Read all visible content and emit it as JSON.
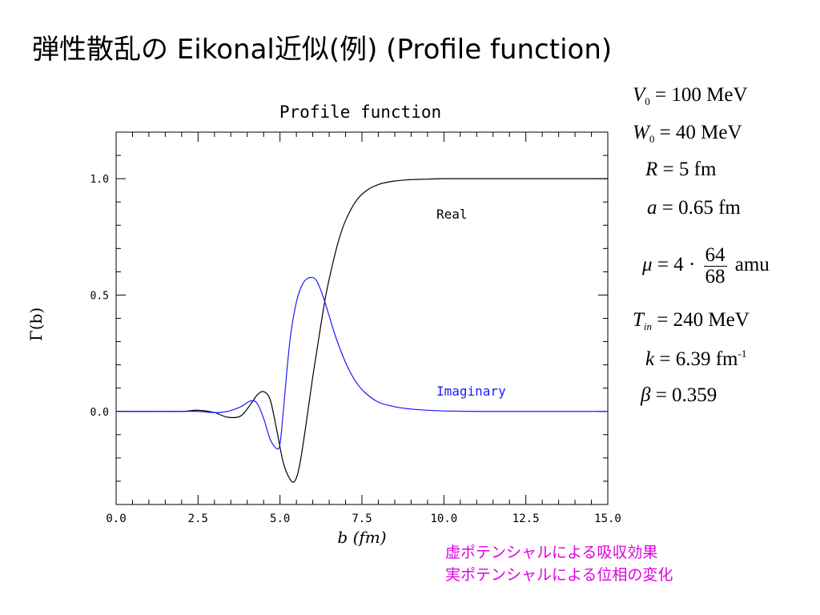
{
  "slide": {
    "title": "弾性散乱の Eikonal近似(例) (Profile function)"
  },
  "parameters": {
    "V0": {
      "symbol": "V",
      "sub": "0",
      "rhs": "= 100 MeV"
    },
    "W0": {
      "symbol": "W",
      "sub": "0",
      "rhs": "= 40 MeV"
    },
    "R": {
      "symbol": "R",
      "rhs": "= 5 fm"
    },
    "a": {
      "symbol": "a",
      "rhs": "= 0.65 fm"
    },
    "mu": {
      "symbol": "μ",
      "lhs_rest": "= 4 ·",
      "num": "64",
      "den": "68",
      "unit": "amu"
    },
    "Tin": {
      "symbol": "T",
      "sub": "in",
      "rhs": "= 240 MeV"
    },
    "k": {
      "symbol": "k",
      "rhs": "= 6.39 fm",
      "sup": "-1"
    },
    "beta": {
      "symbol": "β",
      "rhs": "= 0.359"
    }
  },
  "notes": {
    "line1": "虚ポテンシャルによる吸収効果",
    "line2": "実ポテンシャルによる位相の変化"
  },
  "chart_data": {
    "type": "line",
    "title": "Profile function",
    "xlabel": "b (fm)",
    "ylabel": "Γ(b)",
    "xlim": [
      0,
      15
    ],
    "ylim": [
      -0.4,
      1.2
    ],
    "x_ticks": [
      "0.0",
      "2.5",
      "5.0",
      "7.5",
      "10.0",
      "12.5",
      "15.0"
    ],
    "y_ticks": [
      "0.0",
      "0.5",
      "1.0"
    ],
    "grid": false,
    "series": [
      {
        "name": "Real",
        "color": "#000000",
        "x": [
          0,
          1,
          2,
          2.5,
          3,
          3.4,
          3.8,
          4.1,
          4.3,
          4.5,
          4.7,
          4.9,
          5.1,
          5.3,
          5.45,
          5.6,
          5.8,
          6.0,
          6.2,
          6.4,
          6.6,
          6.8,
          7.0,
          7.3,
          7.6,
          8.0,
          8.5,
          9.0,
          9.5,
          10,
          11,
          12,
          13,
          14,
          15
        ],
        "y": [
          0,
          0,
          0,
          0.005,
          -0.005,
          -0.025,
          -0.02,
          0.03,
          0.07,
          0.085,
          0.05,
          -0.08,
          -0.22,
          -0.29,
          -0.3,
          -0.23,
          -0.05,
          0.15,
          0.33,
          0.5,
          0.63,
          0.74,
          0.82,
          0.9,
          0.945,
          0.975,
          0.99,
          0.996,
          0.998,
          1.0,
          1.0,
          1.0,
          1.0,
          1.0,
          1.0
        ]
      },
      {
        "name": "Imaginary",
        "color": "#1a1aff",
        "x": [
          0,
          1,
          2,
          2.5,
          3,
          3.4,
          3.8,
          4.1,
          4.3,
          4.5,
          4.7,
          4.9,
          5.0,
          5.1,
          5.3,
          5.5,
          5.7,
          5.9,
          6.1,
          6.3,
          6.5,
          6.7,
          7.0,
          7.3,
          7.6,
          8.0,
          8.5,
          9.0,
          9.5,
          10,
          11,
          12,
          13,
          14,
          15
        ],
        "y": [
          0,
          0,
          0,
          0,
          -0.005,
          0,
          0.02,
          0.045,
          0.035,
          -0.03,
          -0.12,
          -0.16,
          -0.14,
          0.0,
          0.3,
          0.47,
          0.55,
          0.575,
          0.565,
          0.5,
          0.41,
          0.32,
          0.21,
          0.13,
          0.08,
          0.04,
          0.02,
          0.01,
          0.005,
          0.002,
          0,
          0,
          0,
          0,
          0
        ]
      }
    ]
  }
}
